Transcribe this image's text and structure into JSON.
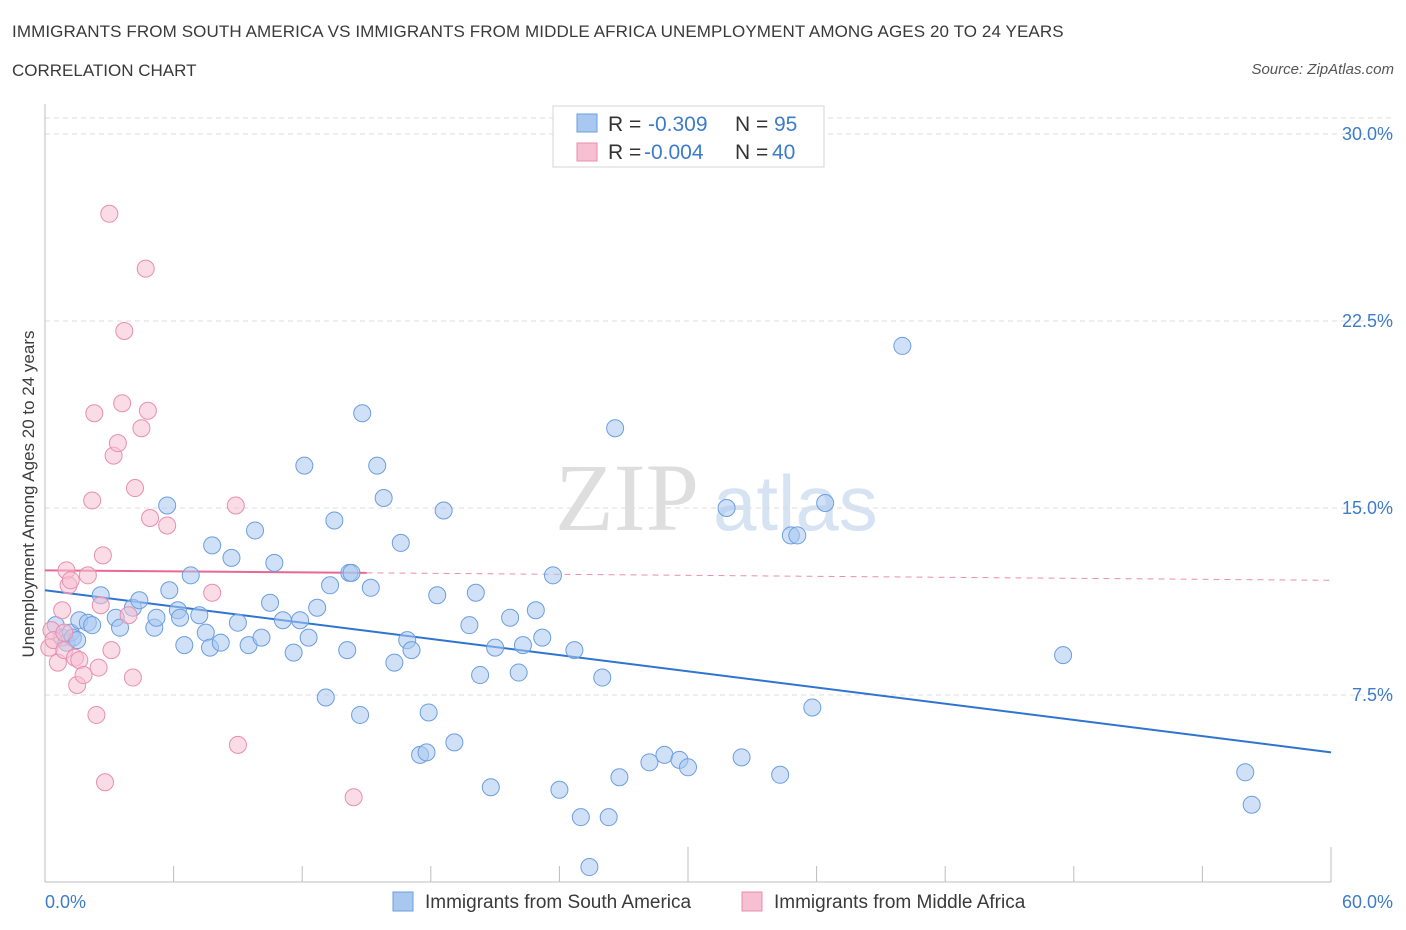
{
  "header": {
    "title": "IMMIGRANTS FROM SOUTH AMERICA VS IMMIGRANTS FROM MIDDLE AFRICA UNEMPLOYMENT AMONG AGES 20 TO 24 YEARS",
    "subtitle": "CORRELATION CHART",
    "source": "Source: ZipAtlas.com"
  },
  "watermark": {
    "zip": "ZIP",
    "atlas": "atlas"
  },
  "colors": {
    "blue_fill": "#a9c8f0",
    "blue_stroke": "#6b9ee0",
    "blue_line": "#2f74d0",
    "pink_fill": "#f6bfd2",
    "pink_stroke": "#e98eaf",
    "pink_line": "#e86892",
    "tick_text": "#3d7cc9",
    "grid": "#dcdcdc"
  },
  "stats_legend": {
    "rows": [
      {
        "r_label": "R =",
        "r_value": "-0.309",
        "n_label": "N =",
        "n_value": "95",
        "series": "blue"
      },
      {
        "r_label": "R =",
        "r_value": "-0.004",
        "n_label": "N =",
        "n_value": "40",
        "series": "pink"
      }
    ]
  },
  "chart_data": {
    "type": "scatter",
    "title": "IMMIGRANTS FROM SOUTH AMERICA VS IMMIGRANTS FROM MIDDLE AFRICA UNEMPLOYMENT AMONG AGES 20 TO 24 YEARS",
    "subtitle": "CORRELATION CHART",
    "xlabel": "",
    "ylabel": "Unemployment Among Ages 20 to 24 years",
    "xlim": [
      0,
      60
    ],
    "ylim": [
      0,
      30
    ],
    "x_tick_labels": [
      "0.0%",
      "60.0%"
    ],
    "y_ticks": [
      7.5,
      15.0,
      22.5,
      30.0
    ],
    "y_tick_labels": [
      "7.5%",
      "15.0%",
      "22.5%",
      "30.0%"
    ],
    "grid": "horizontal dashed",
    "legend_position": "bottom",
    "series": [
      {
        "name": "Immigrants from South America",
        "color": "#a9c8f0",
        "R": -0.309,
        "N": 95,
        "trend": {
          "x": [
            0,
            60
          ],
          "y": [
            11.7,
            5.2
          ],
          "style": "solid"
        },
        "points": [
          [
            0.5,
            10.3
          ],
          [
            0.8,
            9.8
          ],
          [
            1.0,
            9.6
          ],
          [
            1.2,
            10.0
          ],
          [
            1.3,
            9.8
          ],
          [
            1.5,
            9.7
          ],
          [
            1.6,
            10.5
          ],
          [
            2.0,
            10.4
          ],
          [
            2.2,
            10.3
          ],
          [
            2.6,
            11.5
          ],
          [
            3.3,
            10.6
          ],
          [
            3.5,
            10.2
          ],
          [
            4.1,
            11.0
          ],
          [
            4.4,
            11.3
          ],
          [
            5.1,
            10.2
          ],
          [
            5.2,
            10.6
          ],
          [
            5.7,
            15.1
          ],
          [
            5.8,
            11.7
          ],
          [
            6.2,
            10.9
          ],
          [
            6.3,
            10.6
          ],
          [
            6.5,
            9.5
          ],
          [
            6.8,
            12.3
          ],
          [
            7.2,
            10.7
          ],
          [
            7.5,
            10.0
          ],
          [
            7.7,
            9.4
          ],
          [
            7.8,
            13.5
          ],
          [
            8.2,
            9.6
          ],
          [
            8.7,
            13.0
          ],
          [
            9.0,
            10.4
          ],
          [
            9.5,
            9.5
          ],
          [
            9.8,
            14.1
          ],
          [
            10.1,
            9.8
          ],
          [
            10.5,
            11.2
          ],
          [
            10.7,
            12.8
          ],
          [
            11.1,
            10.5
          ],
          [
            11.6,
            9.2
          ],
          [
            11.9,
            10.5
          ],
          [
            12.1,
            16.7
          ],
          [
            12.3,
            9.8
          ],
          [
            12.7,
            11.0
          ],
          [
            13.1,
            7.4
          ],
          [
            13.3,
            11.9
          ],
          [
            13.5,
            14.5
          ],
          [
            14.1,
            9.3
          ],
          [
            14.2,
            12.4
          ],
          [
            14.3,
            12.4
          ],
          [
            14.7,
            6.7
          ],
          [
            14.8,
            18.8
          ],
          [
            15.2,
            11.8
          ],
          [
            15.5,
            16.7
          ],
          [
            15.8,
            15.4
          ],
          [
            16.3,
            8.8
          ],
          [
            16.6,
            13.6
          ],
          [
            16.9,
            9.7
          ],
          [
            17.1,
            9.3
          ],
          [
            17.5,
            5.1
          ],
          [
            17.8,
            5.2
          ],
          [
            17.9,
            6.8
          ],
          [
            18.3,
            11.5
          ],
          [
            18.6,
            14.9
          ],
          [
            19.1,
            5.6
          ],
          [
            19.8,
            10.3
          ],
          [
            20.1,
            11.6
          ],
          [
            20.3,
            8.3
          ],
          [
            20.8,
            3.8
          ],
          [
            21.0,
            9.4
          ],
          [
            21.7,
            10.6
          ],
          [
            22.1,
            8.4
          ],
          [
            22.3,
            9.5
          ],
          [
            22.9,
            10.9
          ],
          [
            23.2,
            9.8
          ],
          [
            23.7,
            12.3
          ],
          [
            24.0,
            3.7
          ],
          [
            24.7,
            9.3
          ],
          [
            25.0,
            2.6
          ],
          [
            25.4,
            0.6
          ],
          [
            26.0,
            8.2
          ],
          [
            26.3,
            2.6
          ],
          [
            26.6,
            18.2
          ],
          [
            26.8,
            4.2
          ],
          [
            28.2,
            4.8
          ],
          [
            28.9,
            5.1
          ],
          [
            29.6,
            4.9
          ],
          [
            30.0,
            4.6
          ],
          [
            31.8,
            15.0
          ],
          [
            32.5,
            5.0
          ],
          [
            34.3,
            4.3
          ],
          [
            34.8,
            13.9
          ],
          [
            35.1,
            13.9
          ],
          [
            35.8,
            7.0
          ],
          [
            36.4,
            15.2
          ],
          [
            40.0,
            21.5
          ],
          [
            47.5,
            9.1
          ],
          [
            56.0,
            4.4
          ],
          [
            56.3,
            3.1
          ]
        ]
      },
      {
        "name": "Immigrants from Middle Africa",
        "color": "#f6bfd2",
        "R": -0.004,
        "N": 40,
        "trend": {
          "x": [
            0,
            15
          ],
          "y": [
            12.5,
            12.4
          ],
          "style": "solid",
          "extension": {
            "x": [
              15,
              60
            ],
            "y": [
              12.4,
              12.1
            ],
            "style": "dashed"
          }
        },
        "points": [
          [
            0.2,
            9.4
          ],
          [
            0.3,
            10.1
          ],
          [
            0.4,
            9.7
          ],
          [
            0.6,
            8.8
          ],
          [
            0.8,
            10.9
          ],
          [
            0.9,
            9.3
          ],
          [
            1.0,
            12.5
          ],
          [
            1.1,
            11.9
          ],
          [
            1.2,
            12.1
          ],
          [
            1.4,
            9.0
          ],
          [
            1.5,
            7.9
          ],
          [
            1.6,
            8.9
          ],
          [
            1.8,
            8.3
          ],
          [
            2.0,
            12.3
          ],
          [
            2.2,
            15.3
          ],
          [
            2.3,
            18.8
          ],
          [
            2.4,
            6.7
          ],
          [
            2.5,
            8.6
          ],
          [
            2.6,
            11.1
          ],
          [
            2.7,
            13.1
          ],
          [
            2.8,
            4.0
          ],
          [
            3.0,
            26.8
          ],
          [
            3.1,
            9.3
          ],
          [
            3.2,
            17.1
          ],
          [
            3.4,
            17.6
          ],
          [
            3.6,
            19.2
          ],
          [
            3.7,
            22.1
          ],
          [
            3.9,
            10.7
          ],
          [
            4.1,
            8.2
          ],
          [
            4.2,
            15.8
          ],
          [
            4.5,
            18.2
          ],
          [
            4.7,
            24.6
          ],
          [
            4.8,
            18.9
          ],
          [
            4.9,
            14.6
          ],
          [
            5.7,
            14.3
          ],
          [
            7.8,
            11.6
          ],
          [
            8.9,
            15.1
          ],
          [
            9.0,
            5.5
          ],
          [
            14.4,
            3.4
          ],
          [
            0.9,
            10.0
          ]
        ]
      }
    ]
  },
  "bottom_legend": {
    "items": [
      {
        "label": "Immigrants from South America",
        "series": "blue"
      },
      {
        "label": "Immigrants from Middle Africa",
        "series": "pink"
      }
    ]
  }
}
